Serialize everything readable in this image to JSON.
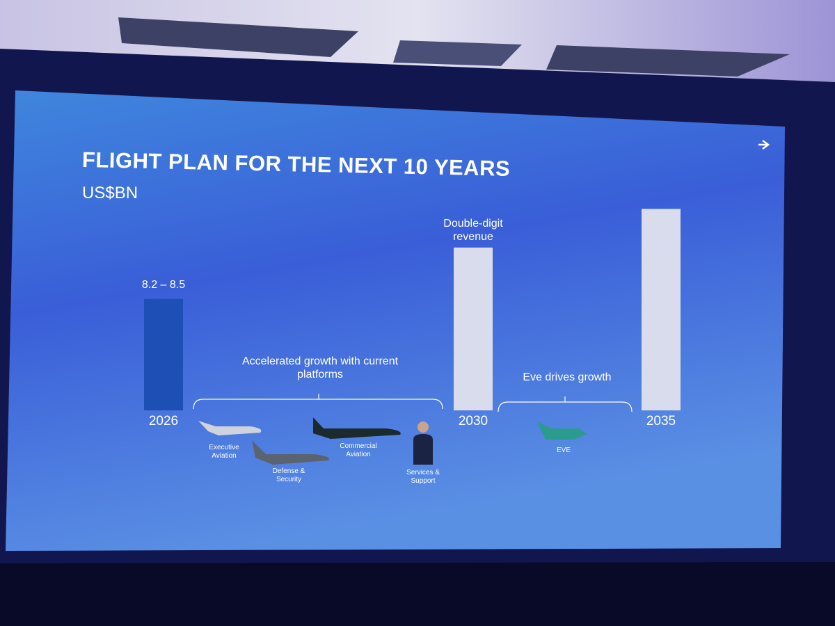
{
  "chart_data": {
    "type": "bar",
    "title": "FLIGHT PLAN FOR THE NEXT 10 YEARS",
    "subtitle": "US$BN",
    "categories": [
      "2026",
      "2030",
      "2035"
    ],
    "values": [
      8.35,
      12.2,
      15.1
    ],
    "colors": [
      "#1d4fb5",
      "#d9dced",
      "#d9dced"
    ],
    "ylim": [
      0,
      16
    ],
    "annotations": [
      "8.2 – 8.5",
      "Double-digit revenue",
      "Accelerated growth with current platforms",
      "Eve drives growth"
    ],
    "segments": [
      "Executive Aviation",
      "Defense & Security",
      "Commercial Aviation",
      "Services & Support",
      "EVE"
    ]
  }
}
